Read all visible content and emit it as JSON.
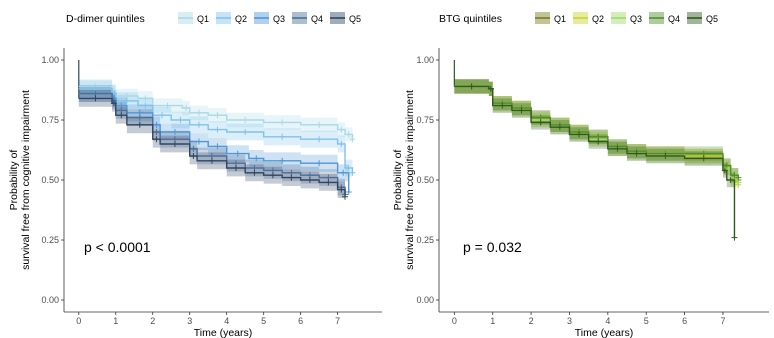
{
  "chart_data": [
    {
      "type": "line",
      "subtype": "kaplan-meier",
      "legend_title": "D-dimer quintiles",
      "legend_position": "top",
      "xlabel": "Time (years)",
      "ylabel": "Probability of\nsurvival free from cognitive impairment",
      "xlim": [
        -0.4,
        8.2
      ],
      "ylim": [
        -0.05,
        1.05
      ],
      "xticks": [
        0,
        1,
        2,
        3,
        4,
        5,
        6,
        7
      ],
      "yticks": [
        0.0,
        0.25,
        0.5,
        0.75,
        1.0
      ],
      "ytick_labels": [
        "0.00",
        "0.25",
        "0.50",
        "0.75",
        "1.00"
      ],
      "grid": false,
      "annotation": "p < 0.0001",
      "series": [
        {
          "name": "Q1",
          "color": "#a9d9e6",
          "x": [
            0,
            0.9,
            1.0,
            1.6,
            2.0,
            2.8,
            3.0,
            3.5,
            4.0,
            5.0,
            6.0,
            7.0,
            7.2,
            7.4
          ],
          "y": [
            0.89,
            0.87,
            0.85,
            0.84,
            0.81,
            0.8,
            0.78,
            0.77,
            0.75,
            0.74,
            0.73,
            0.71,
            0.69,
            0.67
          ],
          "ci": 0.03
        },
        {
          "name": "Q2",
          "color": "#7fc3eb",
          "x": [
            0,
            0.9,
            1.0,
            1.6,
            2.0,
            2.5,
            3.0,
            3.5,
            4.0,
            5.0,
            6.0,
            7.0,
            7.2,
            7.4
          ],
          "y": [
            0.88,
            0.86,
            0.83,
            0.81,
            0.77,
            0.75,
            0.73,
            0.71,
            0.7,
            0.68,
            0.67,
            0.65,
            0.55,
            0.53
          ],
          "ci": 0.035
        },
        {
          "name": "Q3",
          "color": "#4f97d6",
          "x": [
            0,
            0.9,
            1.0,
            1.3,
            2.0,
            2.2,
            3.0,
            3.5,
            4.0,
            4.6,
            5.0,
            6.0,
            7.0,
            7.3
          ],
          "y": [
            0.86,
            0.84,
            0.81,
            0.78,
            0.73,
            0.7,
            0.66,
            0.64,
            0.61,
            0.59,
            0.58,
            0.57,
            0.53,
            0.45
          ],
          "ci": 0.035
        },
        {
          "name": "Q4",
          "color": "#4c6f99",
          "x": [
            0,
            0.9,
            1.0,
            1.3,
            2.0,
            2.2,
            3.0,
            3.2,
            4.0,
            4.5,
            5.0,
            5.5,
            6.0,
            6.5,
            7.0,
            7.2
          ],
          "y": [
            0.86,
            0.83,
            0.79,
            0.76,
            0.7,
            0.67,
            0.63,
            0.6,
            0.57,
            0.55,
            0.54,
            0.53,
            0.52,
            0.51,
            0.47,
            0.44
          ],
          "ci": 0.035
        },
        {
          "name": "Q5",
          "color": "#2f4663",
          "x": [
            0,
            0.9,
            1.0,
            1.3,
            2.0,
            2.2,
            3.0,
            3.2,
            4.0,
            4.5,
            5.0,
            5.5,
            6.0,
            6.5,
            7.0,
            7.2
          ],
          "y": [
            0.84,
            0.82,
            0.77,
            0.73,
            0.67,
            0.65,
            0.6,
            0.58,
            0.55,
            0.53,
            0.52,
            0.51,
            0.5,
            0.49,
            0.46,
            0.43
          ],
          "ci": 0.035
        }
      ]
    },
    {
      "type": "line",
      "subtype": "kaplan-meier",
      "legend_title": "BTG quintiles",
      "legend_position": "top",
      "xlabel": "Time (years)",
      "ylabel": "Probability of\nsurvival free from cognitive impairment",
      "xlim": [
        -0.4,
        8.2
      ],
      "ylim": [
        -0.05,
        1.05
      ],
      "xticks": [
        0,
        1,
        2,
        3,
        4,
        5,
        6,
        7
      ],
      "yticks": [
        0.0,
        0.25,
        0.5,
        0.75,
        1.0
      ],
      "ytick_labels": [
        "0.00",
        "0.25",
        "0.50",
        "0.75",
        "1.00"
      ],
      "grid": false,
      "annotation": "p = 0.032",
      "series": [
        {
          "name": "Q1",
          "color": "#7a7a1e",
          "x": [
            0,
            0.9,
            1.0,
            1.5,
            2.0,
            2.5,
            3.0,
            3.5,
            4.0,
            4.5,
            5.0,
            6.0,
            7.0,
            7.2,
            7.4
          ],
          "y": [
            0.89,
            0.88,
            0.82,
            0.8,
            0.76,
            0.73,
            0.7,
            0.68,
            0.64,
            0.62,
            0.61,
            0.6,
            0.56,
            0.52,
            0.5
          ],
          "ci": 0.03
        },
        {
          "name": "Q2",
          "color": "#c8d42a",
          "x": [
            0,
            0.9,
            1.0,
            1.5,
            2.0,
            2.5,
            3.0,
            3.5,
            4.0,
            4.5,
            5.0,
            6.0,
            7.0,
            7.2,
            7.4
          ],
          "y": [
            0.89,
            0.88,
            0.82,
            0.8,
            0.75,
            0.73,
            0.7,
            0.67,
            0.63,
            0.62,
            0.61,
            0.6,
            0.55,
            0.5,
            0.48
          ],
          "ci": 0.03
        },
        {
          "name": "Q3",
          "color": "#9fd86a",
          "x": [
            0,
            0.9,
            1.0,
            1.5,
            2.0,
            2.5,
            3.0,
            3.5,
            4.0,
            4.5,
            5.0,
            6.0,
            7.0,
            7.2,
            7.4
          ],
          "y": [
            0.89,
            0.88,
            0.81,
            0.79,
            0.75,
            0.72,
            0.69,
            0.67,
            0.63,
            0.61,
            0.6,
            0.59,
            0.55,
            0.51,
            0.49
          ],
          "ci": 0.03
        },
        {
          "name": "Q4",
          "color": "#4f8f2a",
          "x": [
            0,
            0.9,
            1.0,
            1.5,
            2.0,
            2.5,
            3.0,
            3.5,
            4.0,
            4.5,
            5.0,
            6.0,
            7.0,
            7.2,
            7.4
          ],
          "y": [
            0.89,
            0.88,
            0.82,
            0.8,
            0.76,
            0.73,
            0.7,
            0.68,
            0.64,
            0.62,
            0.61,
            0.61,
            0.56,
            0.52,
            0.51
          ],
          "ci": 0.03
        },
        {
          "name": "Q5",
          "color": "#2f5a1e",
          "x": [
            0,
            0.9,
            1.0,
            1.5,
            2.0,
            2.5,
            3.0,
            3.5,
            4.0,
            4.5,
            5.0,
            6.0,
            7.0,
            7.1,
            7.3
          ],
          "y": [
            0.89,
            0.88,
            0.81,
            0.79,
            0.74,
            0.72,
            0.69,
            0.66,
            0.63,
            0.61,
            0.6,
            0.59,
            0.54,
            0.5,
            0.26
          ],
          "ci": 0.03
        }
      ]
    }
  ]
}
